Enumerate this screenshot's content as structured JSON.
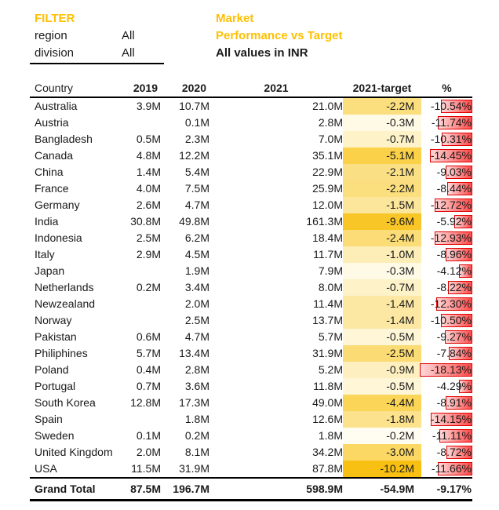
{
  "colors": {
    "accent": "#FFC000",
    "heat_max": "#F8C013",
    "bar_border": "#DF0000",
    "bar_fill_strong": "#FF4A4A",
    "bar_fill_light": "#FFD9D9",
    "rule_line": "#000000"
  },
  "filter": {
    "title": "FILTER",
    "rows": [
      {
        "label": "region",
        "value": "All"
      },
      {
        "label": "division",
        "value": "All"
      }
    ]
  },
  "title_block": {
    "line1": "Market",
    "line2": "Performance vs Target",
    "subtitle": "All values in INR"
  },
  "table": {
    "columns": [
      "Country",
      "2019",
      "2020",
      "2021",
      "2021-target",
      "%"
    ],
    "bar_max_pct": 18.13,
    "rows": [
      {
        "country": "Australia",
        "y2019": "3.9M",
        "y2020": "10.7M",
        "y2021": "21.0M",
        "target": "-2.2M",
        "target_color": "#FBDE7E",
        "pct": "-10.54%",
        "pct_abs": 10.54
      },
      {
        "country": "Austria",
        "y2019": "",
        "y2020": "0.1M",
        "y2021": "2.8M",
        "target": "-0.3M",
        "target_color": "#FEFAE6",
        "pct": "-11.74%",
        "pct_abs": 11.74
      },
      {
        "country": "Bangladesh",
        "y2019": "0.5M",
        "y2020": "2.3M",
        "y2021": "7.0M",
        "target": "-0.7M",
        "target_color": "#FDF2C8",
        "pct": "-10.31%",
        "pct_abs": 10.31
      },
      {
        "country": "Canada",
        "y2019": "4.8M",
        "y2020": "12.2M",
        "y2021": "35.1M",
        "target": "-5.1M",
        "target_color": "#FAD149",
        "pct": "-14.45%",
        "pct_abs": 14.45
      },
      {
        "country": "China",
        "y2019": "1.4M",
        "y2020": "5.4M",
        "y2021": "22.9M",
        "target": "-2.1M",
        "target_color": "#FBDF84",
        "pct": "-9.03%",
        "pct_abs": 9.03
      },
      {
        "country": "France",
        "y2019": "4.0M",
        "y2020": "7.5M",
        "y2021": "25.9M",
        "target": "-2.2M",
        "target_color": "#FBDE7E",
        "pct": "-8.44%",
        "pct_abs": 8.44
      },
      {
        "country": "Germany",
        "y2019": "2.6M",
        "y2020": "4.7M",
        "y2021": "12.0M",
        "target": "-1.5M",
        "target_color": "#FCE69C",
        "pct": "-12.72%",
        "pct_abs": 12.72
      },
      {
        "country": "India",
        "y2019": "30.8M",
        "y2020": "49.8M",
        "y2021": "161.3M",
        "target": "-9.6M",
        "target_color": "#F9C628",
        "pct": "-5.92%",
        "pct_abs": 5.92
      },
      {
        "country": "Indonesia",
        "y2019": "2.5M",
        "y2020": "6.2M",
        "y2021": "18.4M",
        "target": "-2.4M",
        "target_color": "#FBDC77",
        "pct": "-12.93%",
        "pct_abs": 12.93
      },
      {
        "country": "Italy",
        "y2019": "2.9M",
        "y2020": "4.5M",
        "y2021": "11.7M",
        "target": "-1.0M",
        "target_color": "#FDEDB6",
        "pct": "-8.96%",
        "pct_abs": 8.96
      },
      {
        "country": "Japan",
        "y2019": "",
        "y2020": "1.9M",
        "y2021": "7.9M",
        "target": "-0.3M",
        "target_color": "#FEFAE6",
        "pct": "-4.12%",
        "pct_abs": 4.12
      },
      {
        "country": "Netherlands",
        "y2019": "0.2M",
        "y2020": "3.4M",
        "y2021": "8.0M",
        "target": "-0.7M",
        "target_color": "#FDF2C8",
        "pct": "-8.22%",
        "pct_abs": 8.22
      },
      {
        "country": "Newzealand",
        "y2019": "",
        "y2020": "2.0M",
        "y2021": "11.4M",
        "target": "-1.4M",
        "target_color": "#FCE8A3",
        "pct": "-12.30%",
        "pct_abs": 12.3
      },
      {
        "country": "Norway",
        "y2019": "",
        "y2020": "2.5M",
        "y2021": "13.7M",
        "target": "-1.4M",
        "target_color": "#FCE8A3",
        "pct": "-10.50%",
        "pct_abs": 10.5
      },
      {
        "country": "Pakistan",
        "y2019": "0.6M",
        "y2020": "4.7M",
        "y2021": "5.7M",
        "target": "-0.5M",
        "target_color": "#FEF6D7",
        "pct": "-9.27%",
        "pct_abs": 9.27
      },
      {
        "country": "Philiphines",
        "y2019": "5.7M",
        "y2020": "13.4M",
        "y2021": "31.9M",
        "target": "-2.5M",
        "target_color": "#FBDB73",
        "pct": "-7.84%",
        "pct_abs": 7.84
      },
      {
        "country": "Poland",
        "y2019": "0.4M",
        "y2020": "2.8M",
        "y2021": "5.2M",
        "target": "-0.9M",
        "target_color": "#FDEFBF",
        "pct": "-18.13%",
        "pct_abs": 18.13
      },
      {
        "country": "Portugal",
        "y2019": "0.7M",
        "y2020": "3.6M",
        "y2021": "11.8M",
        "target": "-0.5M",
        "target_color": "#FEF6D7",
        "pct": "-4.29%",
        "pct_abs": 4.29
      },
      {
        "country": "South Korea",
        "y2019": "12.8M",
        "y2020": "17.3M",
        "y2021": "49.0M",
        "target": "-4.4M",
        "target_color": "#FAD557",
        "pct": "-8.91%",
        "pct_abs": 8.91
      },
      {
        "country": "Spain",
        "y2019": "",
        "y2020": "1.8M",
        "y2021": "12.6M",
        "target": "-1.8M",
        "target_color": "#FCE28D",
        "pct": "-14.15%",
        "pct_abs": 14.15
      },
      {
        "country": "Sweden",
        "y2019": "0.1M",
        "y2020": "0.2M",
        "y2021": "1.8M",
        "target": "-0.2M",
        "target_color": "#FFFDF2",
        "pct": "-11.11%",
        "pct_abs": 11.11
      },
      {
        "country": "United Kingdom",
        "y2019": "2.0M",
        "y2020": "8.1M",
        "y2021": "34.2M",
        "target": "-3.0M",
        "target_color": "#FBD763",
        "pct": "-8.72%",
        "pct_abs": 8.72
      },
      {
        "country": "USA",
        "y2019": "11.5M",
        "y2020": "31.9M",
        "y2021": "87.8M",
        "target": "-10.2M",
        "target_color": "#F8C013",
        "pct": "-11.66%",
        "pct_abs": 11.66
      }
    ],
    "total": {
      "country": "Grand Total",
      "y2019": "87.5M",
      "y2020": "196.7M",
      "y2021": "598.9M",
      "target": "-54.9M",
      "pct": "-9.17%"
    }
  },
  "chart_data": {
    "type": "table",
    "title": "Market Performance vs Target (All values in INR)",
    "columns": [
      "Country",
      "2019",
      "2020",
      "2021",
      "2021-target",
      "%"
    ],
    "rows": [
      [
        "Australia",
        "3.9M",
        "10.7M",
        "21.0M",
        "-2.2M",
        "-10.54%"
      ],
      [
        "Austria",
        "",
        "0.1M",
        "2.8M",
        "-0.3M",
        "-11.74%"
      ],
      [
        "Bangladesh",
        "0.5M",
        "2.3M",
        "7.0M",
        "-0.7M",
        "-10.31%"
      ],
      [
        "Canada",
        "4.8M",
        "12.2M",
        "35.1M",
        "-5.1M",
        "-14.45%"
      ],
      [
        "China",
        "1.4M",
        "5.4M",
        "22.9M",
        "-2.1M",
        "-9.03%"
      ],
      [
        "France",
        "4.0M",
        "7.5M",
        "25.9M",
        "-2.2M",
        "-8.44%"
      ],
      [
        "Germany",
        "2.6M",
        "4.7M",
        "12.0M",
        "-1.5M",
        "-12.72%"
      ],
      [
        "India",
        "30.8M",
        "49.8M",
        "161.3M",
        "-9.6M",
        "-5.92%"
      ],
      [
        "Indonesia",
        "2.5M",
        "6.2M",
        "18.4M",
        "-2.4M",
        "-12.93%"
      ],
      [
        "Italy",
        "2.9M",
        "4.5M",
        "11.7M",
        "-1.0M",
        "-8.96%"
      ],
      [
        "Japan",
        "",
        "1.9M",
        "7.9M",
        "-0.3M",
        "-4.12%"
      ],
      [
        "Netherlands",
        "0.2M",
        "3.4M",
        "8.0M",
        "-0.7M",
        "-8.22%"
      ],
      [
        "Newzealand",
        "",
        "2.0M",
        "11.4M",
        "-1.4M",
        "-12.30%"
      ],
      [
        "Norway",
        "",
        "2.5M",
        "13.7M",
        "-1.4M",
        "-10.50%"
      ],
      [
        "Pakistan",
        "0.6M",
        "4.7M",
        "5.7M",
        "-0.5M",
        "-9.27%"
      ],
      [
        "Philiphines",
        "5.7M",
        "13.4M",
        "31.9M",
        "-2.5M",
        "-7.84%"
      ],
      [
        "Poland",
        "0.4M",
        "2.8M",
        "5.2M",
        "-0.9M",
        "-18.13%"
      ],
      [
        "Portugal",
        "0.7M",
        "3.6M",
        "11.8M",
        "-0.5M",
        "-4.29%"
      ],
      [
        "South Korea",
        "12.8M",
        "17.3M",
        "49.0M",
        "-4.4M",
        "-8.91%"
      ],
      [
        "Spain",
        "",
        "1.8M",
        "12.6M",
        "-1.8M",
        "-14.15%"
      ],
      [
        "Sweden",
        "0.1M",
        "0.2M",
        "1.8M",
        "-0.2M",
        "-11.11%"
      ],
      [
        "United Kingdom",
        "2.0M",
        "8.1M",
        "34.2M",
        "-3.0M",
        "-8.72%"
      ],
      [
        "USA",
        "11.5M",
        "31.9M",
        "87.8M",
        "-10.2M",
        "-11.66%"
      ],
      [
        "Grand Total",
        "87.5M",
        "196.7M",
        "598.9M",
        "-54.9M",
        "-9.17%"
      ]
    ]
  }
}
